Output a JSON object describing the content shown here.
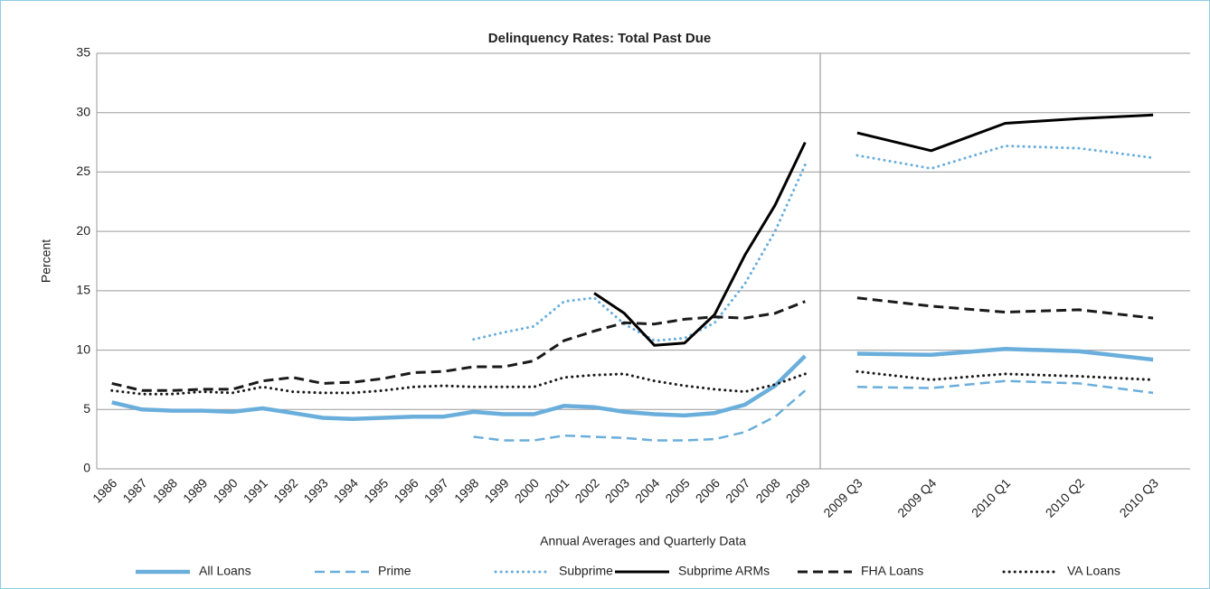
{
  "chart_data": [
    {
      "type": "line",
      "title": "Delinquency Rates: Total Past Due",
      "x_label": "Annual Averages and Quarterly Data",
      "y_label": "Percent",
      "categories": [
        "1986",
        "1987",
        "1988",
        "1989",
        "1990",
        "1991",
        "1992",
        "1993",
        "1994",
        "1995",
        "1996",
        "1997",
        "1998",
        "1999",
        "2000",
        "2001",
        "2002",
        "2003",
        "2004",
        "2005",
        "2006",
        "2007",
        "2008",
        "2009"
      ],
      "ylim": [
        0,
        35
      ],
      "yticks": [
        0,
        5,
        10,
        15,
        20,
        25,
        30,
        35
      ],
      "grid": true,
      "legend": "bottom",
      "series": [
        {
          "name": "All Loans",
          "color": "#6aaedc",
          "dash": "solid",
          "width": 4.5,
          "values": [
            5.6,
            5.0,
            4.9,
            4.9,
            4.8,
            5.1,
            4.7,
            4.3,
            4.2,
            4.3,
            4.4,
            4.4,
            4.8,
            4.6,
            4.6,
            5.3,
            5.2,
            4.8,
            4.6,
            4.5,
            4.7,
            5.4,
            7.0,
            9.5
          ]
        },
        {
          "name": "Prime",
          "color": "#6aaedc",
          "dash": "dashed",
          "width": 2.5,
          "values": [
            null,
            null,
            null,
            null,
            null,
            null,
            null,
            null,
            null,
            null,
            null,
            null,
            2.7,
            2.4,
            2.4,
            2.8,
            2.7,
            2.6,
            2.4,
            2.4,
            2.5,
            3.1,
            4.4,
            6.6
          ]
        },
        {
          "name": "Subprime",
          "color": "#6aaedc",
          "dash": "dotted",
          "width": 3,
          "values": [
            null,
            null,
            null,
            null,
            null,
            null,
            null,
            null,
            null,
            null,
            null,
            null,
            10.9,
            11.5,
            12.0,
            14.1,
            14.4,
            12.2,
            10.8,
            11.0,
            12.3,
            15.6,
            20.0,
            25.6
          ]
        },
        {
          "name": "Subprime ARMs",
          "color": "#000000",
          "dash": "solid",
          "width": 3,
          "values": [
            null,
            null,
            null,
            null,
            null,
            null,
            null,
            null,
            null,
            null,
            null,
            null,
            null,
            null,
            null,
            null,
            14.8,
            13.1,
            10.4,
            10.6,
            13.0,
            18.0,
            22.2,
            27.5
          ]
        },
        {
          "name": "FHA Loans",
          "color": "#1a1a1a",
          "dash": "dashed",
          "width": 3,
          "values": [
            7.2,
            6.6,
            6.6,
            6.7,
            6.7,
            7.4,
            7.7,
            7.2,
            7.3,
            7.6,
            8.1,
            8.2,
            8.6,
            8.6,
            9.1,
            10.8,
            11.6,
            12.3,
            12.2,
            12.6,
            12.8,
            12.7,
            13.1,
            14.1
          ]
        },
        {
          "name": "VA Loans",
          "color": "#1a1a1a",
          "dash": "dotted",
          "width": 3,
          "values": [
            6.6,
            6.3,
            6.3,
            6.5,
            6.4,
            6.9,
            6.5,
            6.4,
            6.4,
            6.6,
            6.9,
            7.0,
            6.9,
            6.9,
            6.9,
            7.7,
            7.9,
            8.0,
            7.4,
            7.0,
            6.7,
            6.5,
            7.1,
            8.0
          ]
        }
      ]
    },
    {
      "type": "line",
      "categories": [
        "2009 Q3",
        "2009 Q4",
        "2010 Q1",
        "2010 Q2",
        "2010 Q3"
      ],
      "ylim": [
        0,
        35
      ],
      "yticks": [
        0,
        5,
        10,
        15,
        20,
        25,
        30,
        35
      ],
      "grid": true,
      "series": [
        {
          "color": "#6aaedc",
          "dash": "solid",
          "width": 4.5,
          "values": [
            9.7,
            9.6,
            10.1,
            9.9,
            9.2
          ]
        },
        {
          "color": "#6aaedc",
          "dash": "dashed",
          "width": 2.5,
          "values": [
            6.9,
            6.8,
            7.4,
            7.2,
            6.4
          ]
        },
        {
          "color": "#6aaedc",
          "dash": "dotted",
          "width": 3,
          "values": [
            26.4,
            25.3,
            27.2,
            27.0,
            26.2
          ]
        },
        {
          "color": "#000000",
          "dash": "solid",
          "width": 3,
          "values": [
            28.3,
            26.8,
            29.1,
            29.5,
            29.8
          ]
        },
        {
          "color": "#1a1a1a",
          "dash": "dashed",
          "width": 3,
          "values": [
            14.4,
            13.7,
            13.2,
            13.4,
            12.7
          ]
        },
        {
          "color": "#1a1a1a",
          "dash": "dotted",
          "width": 3,
          "values": [
            8.2,
            7.5,
            8.0,
            7.8,
            7.5
          ]
        }
      ]
    }
  ]
}
